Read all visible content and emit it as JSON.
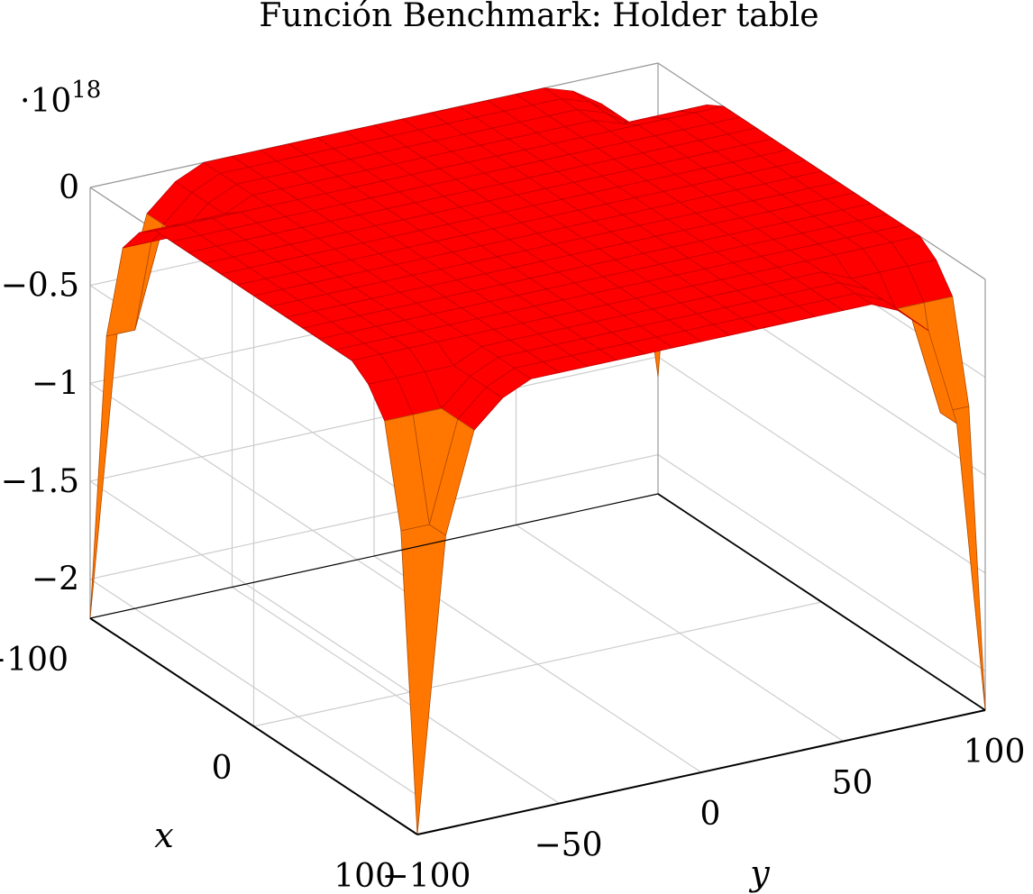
{
  "chart_data": {
    "type": "surface",
    "title": "Función Benchmark: Holder table",
    "xlabel": "x",
    "ylabel": "y",
    "zlabel": "",
    "z_scale_label": "·10¹⁸",
    "z_scale_label_parts": {
      "base": "·10",
      "exponent": "18"
    },
    "xlim": [
      -100,
      100
    ],
    "ylim": [
      -100,
      100
    ],
    "zlim": [
      -2.2,
      0
    ],
    "x_ticks": [
      "−100",
      "0",
      "100"
    ],
    "y_ticks": [
      "−100",
      "−50",
      "0",
      "50",
      "100"
    ],
    "z_ticks": [
      "0",
      "−0.5",
      "−1",
      "−1.5",
      "−2"
    ],
    "z_tick_values": [
      0,
      -0.5,
      -1,
      -1.5,
      -2
    ],
    "grid": true,
    "colormap": "hot",
    "surface_colors": {
      "top": "#ff0000",
      "flank": "#ff7700",
      "grid_line": "#c00000",
      "flank_line": "#b04a00"
    },
    "corner_minima": [
      {
        "x": -100,
        "y": -100,
        "z": -2.2
      },
      {
        "x": -100,
        "y": 100,
        "z": -1.6
      },
      {
        "x": 100,
        "y": -100,
        "z": -2.2
      },
      {
        "x": 100,
        "y": 100,
        "z": -2.2
      }
    ]
  }
}
